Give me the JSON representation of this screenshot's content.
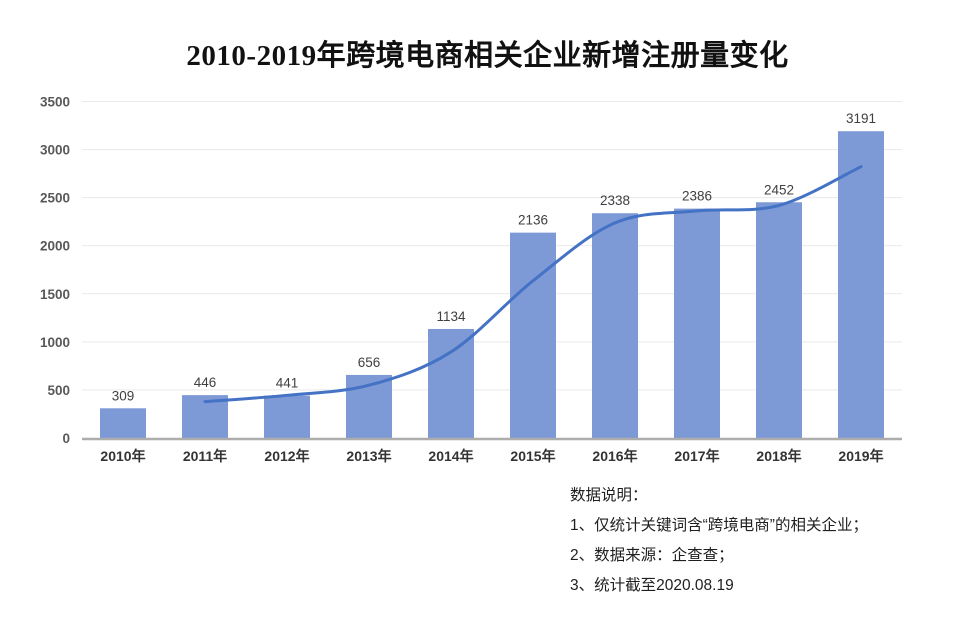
{
  "title": "2010-2019年跨境电商相关企业新增注册量变化",
  "chart_data": {
    "type": "bar",
    "title": "2010-2019年跨境电商相关企业新增注册量变化",
    "categories": [
      "2010年",
      "2011年",
      "2012年",
      "2013年",
      "2014年",
      "2015年",
      "2016年",
      "2017年",
      "2018年",
      "2019年"
    ],
    "values": [
      309,
      446,
      441,
      656,
      1134,
      2136,
      2338,
      2386,
      2452,
      3191
    ],
    "trend_line_values": [
      null,
      378,
      444,
      549,
      895,
      1635,
      2237,
      2362,
      2419,
      2822
    ],
    "data_labels": [
      "309",
      "446",
      "441",
      "656",
      "1134",
      "2136",
      "2338",
      "2386",
      "2452",
      "3191"
    ],
    "xlabel": "",
    "ylabel": "",
    "ylim": [
      0,
      3500
    ],
    "y_ticks": [
      0,
      500,
      1000,
      1500,
      2000,
      2500,
      3000,
      3500
    ],
    "grid": true,
    "legend": "none",
    "colors": {
      "bar": "#7D99D6",
      "trend_line": "#4472C4",
      "grid_line": "#E9E9E9",
      "axis_line": "#ADADAD",
      "y_tick_label": "#595959",
      "x_tick_label": "#333333",
      "data_label": "#404040"
    }
  },
  "notes": {
    "heading": "数据说明：",
    "items": [
      "1、仅统计关键词含“跨境电商”的相关企业；",
      "2、数据来源：企查查；",
      "3、统计截至2020.08.19"
    ]
  }
}
